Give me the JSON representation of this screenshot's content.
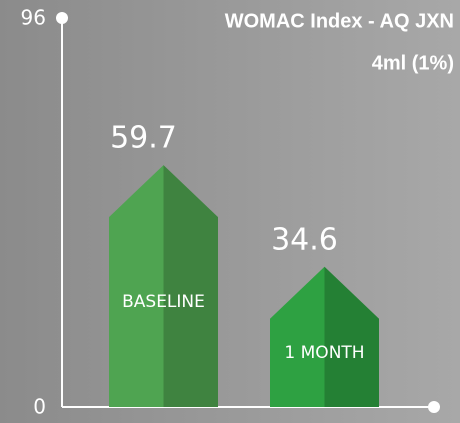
{
  "chart_data": {
    "type": "arrow-bar",
    "title": "WOMAC Index - AQ JXN",
    "subtitle": "4ml (1%)",
    "categories": [
      "BASELINE",
      "1 MONTH"
    ],
    "values": [
      59.7,
      34.6
    ],
    "colors": [
      "#4fa451",
      "#2ea142"
    ],
    "ylim": [
      0,
      96
    ],
    "yticks": [
      0,
      96
    ]
  }
}
